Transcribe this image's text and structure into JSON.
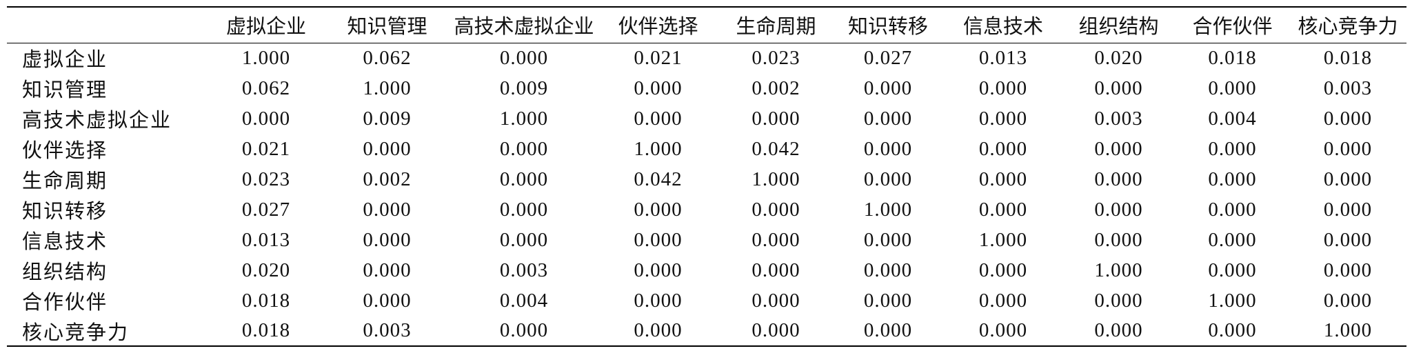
{
  "table": {
    "header": [
      "虚拟企业",
      "知识管理",
      "高技术虚拟企业",
      "伙伴选择",
      "生命周期",
      "知识转移",
      "信息技术",
      "组织结构",
      "合作伙伴",
      "核心竞争力"
    ],
    "rows": [
      [
        "虚拟企业",
        "1.000",
        "0.062",
        "0.000",
        "0.021",
        "0.023",
        "0.027",
        "0.013",
        "0.020",
        "0.018",
        "0.018"
      ],
      [
        "知识管理",
        "0.062",
        "1.000",
        "0.009",
        "0.000",
        "0.002",
        "0.000",
        "0.000",
        "0.000",
        "0.000",
        "0.003"
      ],
      [
        "高技术虚拟企业",
        "0.000",
        "0.009",
        "1.000",
        "0.000",
        "0.000",
        "0.000",
        "0.000",
        "0.003",
        "0.004",
        "0.000"
      ],
      [
        "伙伴选择",
        "0.021",
        "0.000",
        "0.000",
        "1.000",
        "0.042",
        "0.000",
        "0.000",
        "0.000",
        "0.000",
        "0.000"
      ],
      [
        "生命周期",
        "0.023",
        "0.002",
        "0.000",
        "0.042",
        "1.000",
        "0.000",
        "0.000",
        "0.000",
        "0.000",
        "0.000"
      ],
      [
        "知识转移",
        "0.027",
        "0.000",
        "0.000",
        "0.000",
        "0.000",
        "1.000",
        "0.000",
        "0.000",
        "0.000",
        "0.000"
      ],
      [
        "信息技术",
        "0.013",
        "0.000",
        "0.000",
        "0.000",
        "0.000",
        "0.000",
        "1.000",
        "0.000",
        "0.000",
        "0.000"
      ],
      [
        "组织结构",
        "0.020",
        "0.000",
        "0.003",
        "0.000",
        "0.000",
        "0.000",
        "0.000",
        "1.000",
        "0.000",
        "0.000"
      ],
      [
        "合作伙伴",
        "0.018",
        "0.000",
        "0.004",
        "0.000",
        "0.000",
        "0.000",
        "0.000",
        "0.000",
        "1.000",
        "0.000"
      ],
      [
        "核心竞争力",
        "0.018",
        "0.003",
        "0.000",
        "0.000",
        "0.000",
        "0.000",
        "0.000",
        "0.000",
        "0.000",
        "1.000"
      ]
    ]
  }
}
